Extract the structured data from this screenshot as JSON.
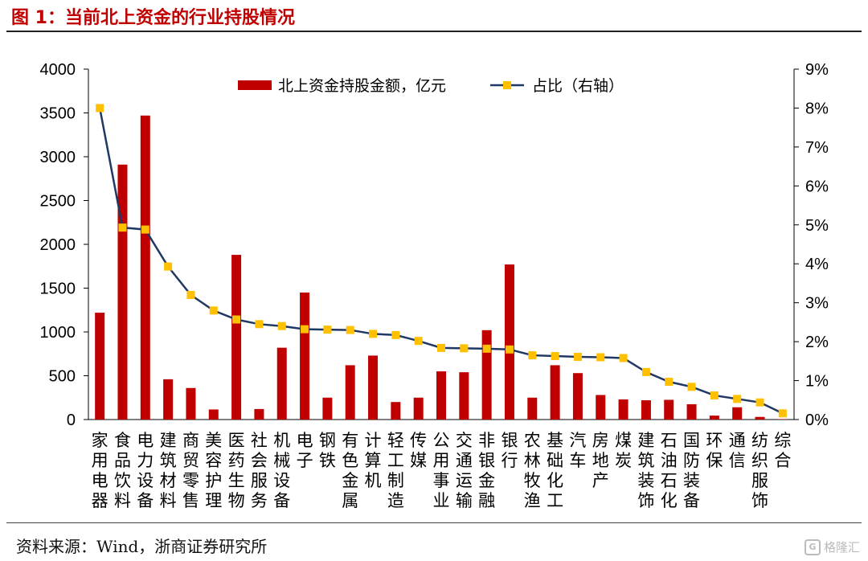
{
  "title": "图 1：当前北上资金的行业持股情况",
  "source": "资料来源：Wind，浙商证券研究所",
  "watermark": "格隆汇",
  "colors": {
    "bar": "#c00000",
    "line": "#1f3864",
    "marker": "#ffc000",
    "title": "#c00000"
  },
  "chart_data": {
    "type": "bar",
    "legend_position": "top-center",
    "grid": false,
    "categories": [
      "家用电器",
      "食品饮料",
      "电力设备",
      "建筑材料",
      "商贸零售",
      "美容护理",
      "医药生物",
      "社会服务",
      "机械设备",
      "电子",
      "钢铁",
      "有色金属",
      "计算机",
      "轻工制造",
      "传媒",
      "公用事业",
      "交通运输",
      "非银金融",
      "银行",
      "农林牧渔",
      "基础化工",
      "汽车",
      "房地产",
      "煤炭",
      "建筑装饰",
      "石油石化",
      "国防装备",
      "环保",
      "通信",
      "纺织服饰",
      "综合"
    ],
    "series": [
      {
        "name": "北上资金持股金额，亿元",
        "type": "bar",
        "axis": "left",
        "values": [
          1220,
          2910,
          3470,
          460,
          360,
          115,
          1880,
          120,
          820,
          1450,
          250,
          620,
          730,
          200,
          250,
          550,
          540,
          1020,
          1770,
          250,
          620,
          530,
          280,
          230,
          220,
          225,
          175,
          45,
          140,
          30,
          5
        ]
      },
      {
        "name": "占比（右轴）",
        "type": "line",
        "axis": "right",
        "values": [
          8.0,
          4.93,
          4.88,
          3.93,
          3.2,
          2.8,
          2.57,
          2.45,
          2.4,
          2.32,
          2.31,
          2.3,
          2.2,
          2.17,
          2.02,
          1.84,
          1.83,
          1.82,
          1.8,
          1.65,
          1.63,
          1.61,
          1.6,
          1.58,
          1.22,
          0.97,
          0.84,
          0.62,
          0.53,
          0.44,
          0.16
        ]
      }
    ],
    "y_left": {
      "min": 0,
      "max": 4000,
      "ticks": [
        "0",
        "500",
        "1000",
        "1500",
        "2000",
        "2500",
        "3000",
        "3500",
        "4000"
      ]
    },
    "y_right": {
      "min": 0,
      "max": 9,
      "ticks": [
        "0%",
        "1%",
        "2%",
        "3%",
        "4%",
        "5%",
        "6%",
        "7%",
        "8%",
        "9%"
      ]
    }
  }
}
